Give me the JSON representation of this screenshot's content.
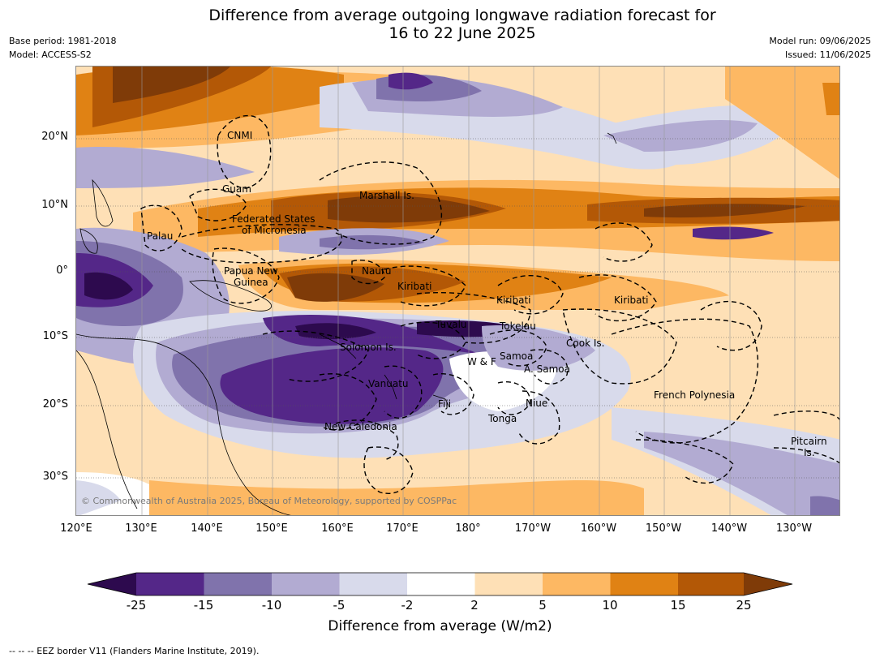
{
  "title_line1": "Difference from average outgoing longwave radiation forecast for",
  "title_line2": "16 to 22 June 2025",
  "base_period": "Base period: 1981-2018",
  "model": "Model: ACCESS-S2",
  "model_run": "Model run: 09/06/2025",
  "issued": "Issued: 11/06/2025",
  "copyright": "© Commonwealth of Australia 2025, Bureau of Meteorology, supported by COSPPac",
  "lat_ticks": [
    "20°N",
    "10°N",
    "0°",
    "10°S",
    "20°S",
    "30°S"
  ],
  "lon_ticks": [
    "120°E",
    "130°E",
    "140°E",
    "150°E",
    "160°E",
    "170°E",
    "180°",
    "170°W",
    "160°W",
    "150°W",
    "140°W",
    "130°W"
  ],
  "places": {
    "cnmi": "CNMI",
    "guam": "Guam",
    "marshall": "Marshall Is.",
    "fsm_1": "Federated States",
    "fsm_2": "of Micronesia",
    "palau": "Palau",
    "png_1": "Papua New",
    "png_2": "Guinea",
    "nauru": "Nauru",
    "kiribati_w": "Kiribati",
    "kiribati_c": "Kiribati",
    "kiribati_e": "Kiribati",
    "tuvalu": "Tuvalu",
    "tokelau": "Tokelau",
    "solomon": "Solomon Is.",
    "cook": "Cook Is.",
    "wf": "W & F",
    "samoa": "Samoa",
    "asamoa": "A. Samoa",
    "vanuatu": "Vanuatu",
    "fiji": "Fiji",
    "niue": "Niue",
    "tonga": "Tonga",
    "french_polynesia": "French Polynesia",
    "new_caledonia": "New Caledonia",
    "pitcairn_1": "Pitcairn",
    "pitcairn_2": "Is."
  },
  "colorbar": {
    "ticks": [
      "-25",
      "-15",
      "-10",
      "-5",
      "-2",
      "2",
      "5",
      "10",
      "15",
      "25"
    ],
    "colors": [
      "#2d0a4e",
      "#542788",
      "#8073ac",
      "#b2abd2",
      "#d8daeb",
      "#ffffff",
      "#fee0b6",
      "#fdb863",
      "#e08214",
      "#b35806",
      "#7f3b08"
    ],
    "label": "Difference from average (W/m2)"
  },
  "footer": "--  --  -- EEZ border V11 (Flanders Marine Institute, 2019)."
}
